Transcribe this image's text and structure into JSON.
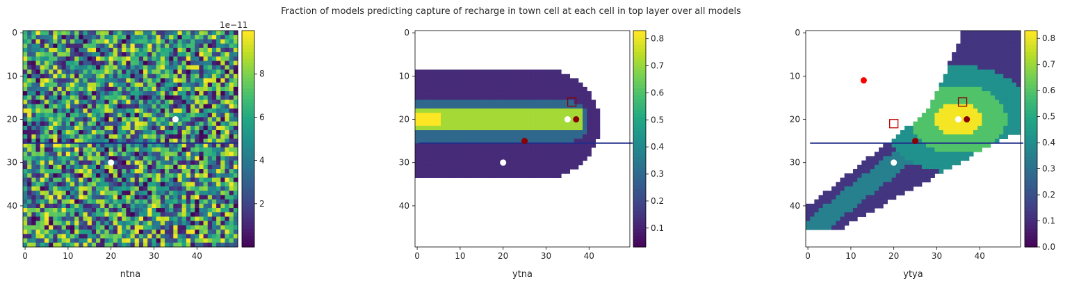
{
  "figure": {
    "title": "Fraction of models predicting capture of recharge in town cell at each cell in top layer over all models"
  },
  "chart_data": [
    {
      "type": "heatmap",
      "title": "",
      "xlabel": "ntna",
      "ylabel": "",
      "xticks": [
        0,
        10,
        20,
        30,
        40
      ],
      "yticks": [
        0,
        10,
        20,
        30,
        40
      ],
      "xlim": [
        -0.5,
        49.5
      ],
      "ylim": [
        49.5,
        -0.5
      ],
      "grid_size": [
        50,
        50
      ],
      "description_of_values": "random noise field",
      "colormap": "viridis",
      "colorbar": {
        "ticks": [
          2,
          4,
          6,
          8
        ],
        "tick_labels": [
          "2",
          "4",
          "6",
          "8"
        ],
        "offset_label": "1e−11",
        "range": [
          0,
          10
        ]
      },
      "line": {
        "y": 25.5,
        "x": [
          -0.5,
          49.5
        ],
        "color": "#1f2c8a"
      },
      "markers": [
        {
          "x": 35,
          "y": 20,
          "color": "#ffffff",
          "shape": "circle"
        },
        {
          "x": 20,
          "y": 30,
          "color": "#ffffff",
          "shape": "circle"
        }
      ]
    },
    {
      "type": "heatmap",
      "title": "",
      "xlabel": "ytna",
      "ylabel": "",
      "xticks": [
        0,
        10,
        20,
        30,
        40
      ],
      "yticks": [
        0,
        10,
        20,
        30,
        40
      ],
      "xlim": [
        -0.5,
        49.5
      ],
      "ylim": [
        49.5,
        -0.5
      ],
      "grid_size": [
        50,
        50
      ],
      "colormap": "viridis",
      "colorbar": {
        "ticks": [
          0.1,
          0.2,
          0.3,
          0.4,
          0.5,
          0.6,
          0.7,
          0.8
        ],
        "tick_labels": [
          "0.1",
          "0.2",
          "0.3",
          "0.4",
          "0.5",
          "0.6",
          "0.7",
          "0.8"
        ],
        "offset_label": "",
        "range": [
          0.03,
          0.83
        ]
      },
      "regions": [
        {
          "label": "plume outer",
          "value": 0.13,
          "x_range": [
            -0.5,
            42.5
          ],
          "y_range": [
            8.5,
            33.5
          ]
        },
        {
          "label": "plume inner band",
          "value": 0.3,
          "x_range": [
            -0.5,
            40
          ],
          "y_range": [
            15.5,
            25.5
          ]
        },
        {
          "label": "plume core",
          "value": 0.72,
          "x_range": [
            -0.5,
            38.5
          ],
          "y_range": [
            17.5,
            22.5
          ]
        },
        {
          "label": "plume head",
          "value": 0.83,
          "x_range": [
            -0.5,
            5.5
          ],
          "y_range": [
            18.5,
            21.5
          ]
        }
      ],
      "line": {
        "y": 25.5,
        "x": [
          0.5,
          49.5
        ],
        "color": "#1f2c8a"
      },
      "markers": [
        {
          "x": 35,
          "y": 20,
          "color": "#ffffff",
          "shape": "circle"
        },
        {
          "x": 20,
          "y": 30,
          "color": "#ffffff",
          "shape": "circle"
        },
        {
          "x": 37,
          "y": 20,
          "color": "#8b0000",
          "shape": "circle"
        },
        {
          "x": 25,
          "y": 25,
          "color": "#8b0000",
          "shape": "circle"
        },
        {
          "x": 36,
          "y": 16,
          "color": "#8b0000",
          "shape": "square-open"
        }
      ]
    },
    {
      "type": "heatmap",
      "title": "",
      "xlabel": "ytya",
      "ylabel": "",
      "xticks": [
        0,
        10,
        20,
        30,
        40
      ],
      "yticks": [
        0,
        10,
        20,
        30,
        40
      ],
      "xlim": [
        -0.5,
        49.5
      ],
      "ylim": [
        49.5,
        -0.5
      ],
      "grid_size": [
        50,
        50
      ],
      "colormap": "viridis",
      "colorbar": {
        "ticks": [
          0.0,
          0.1,
          0.2,
          0.3,
          0.4,
          0.5,
          0.6,
          0.7,
          0.8
        ],
        "tick_labels": [
          "0.0",
          "0.1",
          "0.2",
          "0.3",
          "0.4",
          "0.5",
          "0.6",
          "0.7",
          "0.8"
        ],
        "offset_label": "",
        "range": [
          0.0,
          0.83
        ]
      },
      "line": {
        "y": 25.5,
        "x": [
          0.5,
          49.5
        ],
        "color": "#1f2c8a"
      },
      "markers": [
        {
          "x": 13,
          "y": 11,
          "color": "#ff0000",
          "shape": "circle"
        },
        {
          "x": 35,
          "y": 20,
          "color": "#ffffff",
          "shape": "circle"
        },
        {
          "x": 20,
          "y": 30,
          "color": "#ffffff",
          "shape": "circle"
        },
        {
          "x": 37,
          "y": 20,
          "color": "#8b0000",
          "shape": "circle"
        },
        {
          "x": 25,
          "y": 25,
          "color": "#8b0000",
          "shape": "circle"
        },
        {
          "x": 36,
          "y": 16,
          "color": "#8b0000",
          "shape": "square-open"
        },
        {
          "x": 20,
          "y": 21,
          "color": "#c00000",
          "shape": "square-open"
        }
      ]
    }
  ]
}
